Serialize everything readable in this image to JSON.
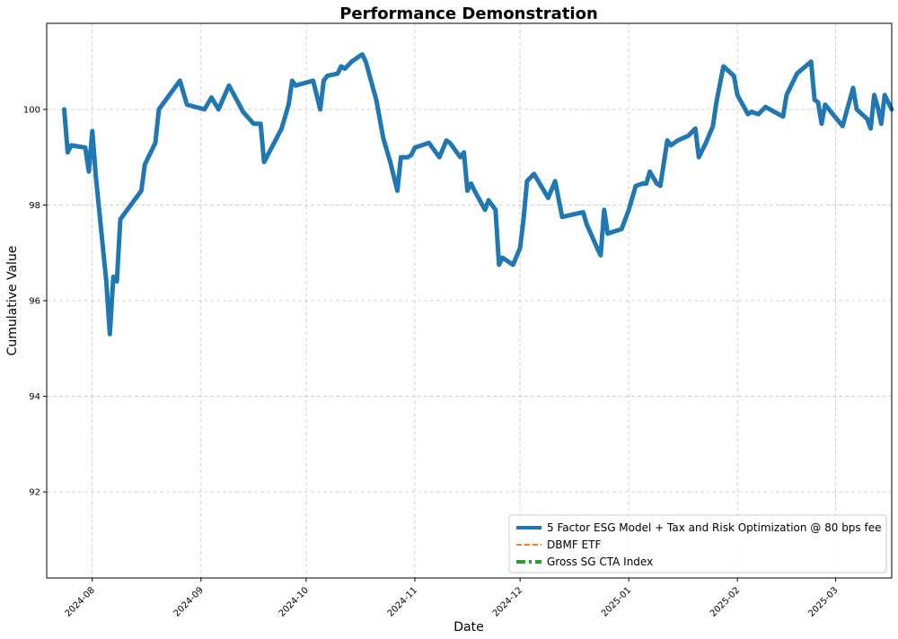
{
  "chart_data": {
    "type": "line",
    "title": "Performance Demonstration",
    "xlabel": "Date",
    "ylabel": "Cumulative Value",
    "xlim": [
      "2024-07-19",
      "2025-03-17"
    ],
    "ylim": [
      90.2,
      101.8
    ],
    "yticks": [
      92,
      94,
      96,
      98,
      100
    ],
    "xticks": [
      "2024-08-01",
      "2024-09-01",
      "2024-10-01",
      "2024-11-01",
      "2024-12-01",
      "2025-01-01",
      "2025-02-01",
      "2025-03-01"
    ],
    "xtick_labels": [
      "2024-08",
      "2024-09",
      "2024-10",
      "2024-11",
      "2024-12",
      "2025-01",
      "2025-02",
      "2025-03"
    ],
    "grid": true,
    "legend_position": "lower-right",
    "series": [
      {
        "name": "5 Factor ESG Model + Tax and Risk Optimization @ 80 bps fee",
        "color": "#1f77b4",
        "style": "solid",
        "points": [
          [
            "2024-07-24",
            100.0
          ],
          [
            "2024-07-25",
            99.1
          ],
          [
            "2024-07-26",
            99.25
          ],
          [
            "2024-07-30",
            99.2
          ],
          [
            "2024-07-31",
            98.7
          ],
          [
            "2024-08-01",
            99.55
          ],
          [
            "2024-08-02",
            98.6
          ],
          [
            "2024-08-05",
            96.4
          ],
          [
            "2024-08-06",
            95.3
          ],
          [
            "2024-08-07",
            96.5
          ],
          [
            "2024-08-08",
            96.4
          ],
          [
            "2024-08-09",
            97.7
          ],
          [
            "2024-08-12",
            98.0
          ],
          [
            "2024-08-15",
            98.3
          ],
          [
            "2024-08-16",
            98.85
          ],
          [
            "2024-08-19",
            99.3
          ],
          [
            "2024-08-20",
            100.0
          ],
          [
            "2024-08-26",
            100.6
          ],
          [
            "2024-08-28",
            100.1
          ],
          [
            "2024-09-02",
            100.0
          ],
          [
            "2024-09-04",
            100.25
          ],
          [
            "2024-09-06",
            100.0
          ],
          [
            "2024-09-09",
            100.5
          ],
          [
            "2024-09-13",
            99.95
          ],
          [
            "2024-09-16",
            99.7
          ],
          [
            "2024-09-18",
            99.7
          ],
          [
            "2024-09-19",
            98.9
          ],
          [
            "2024-09-24",
            99.6
          ],
          [
            "2024-09-26",
            100.1
          ],
          [
            "2024-09-27",
            100.6
          ],
          [
            "2024-09-28",
            100.5
          ],
          [
            "2024-10-03",
            100.6
          ],
          [
            "2024-10-05",
            100.0
          ],
          [
            "2024-10-06",
            100.6
          ],
          [
            "2024-10-07",
            100.7
          ],
          [
            "2024-10-10",
            100.75
          ],
          [
            "2024-10-11",
            100.9
          ],
          [
            "2024-10-12",
            100.85
          ],
          [
            "2024-10-14",
            101.0
          ],
          [
            "2024-10-17",
            101.15
          ],
          [
            "2024-10-18",
            101.0
          ],
          [
            "2024-10-21",
            100.2
          ],
          [
            "2024-10-23",
            99.4
          ],
          [
            "2024-10-25",
            98.9
          ],
          [
            "2024-10-27",
            98.3
          ],
          [
            "2024-10-28",
            99.0
          ],
          [
            "2024-10-30",
            99.0
          ],
          [
            "2024-10-31",
            99.05
          ],
          [
            "2024-11-01",
            99.2
          ],
          [
            "2024-11-05",
            99.3
          ],
          [
            "2024-11-07",
            99.1
          ],
          [
            "2024-11-08",
            99.0
          ],
          [
            "2024-11-10",
            99.35
          ],
          [
            "2024-11-11",
            99.3
          ],
          [
            "2024-11-14",
            99.0
          ],
          [
            "2024-11-15",
            99.1
          ],
          [
            "2024-11-16",
            98.3
          ],
          [
            "2024-11-17",
            98.45
          ],
          [
            "2024-11-18",
            98.3
          ],
          [
            "2024-11-21",
            97.9
          ],
          [
            "2024-11-22",
            98.1
          ],
          [
            "2024-11-24",
            97.9
          ],
          [
            "2024-11-25",
            96.75
          ],
          [
            "2024-11-26",
            96.9
          ],
          [
            "2024-11-28",
            96.8
          ],
          [
            "2024-11-29",
            96.75
          ],
          [
            "2024-12-01",
            97.1
          ],
          [
            "2024-12-02",
            97.7
          ],
          [
            "2024-12-03",
            98.5
          ],
          [
            "2024-12-05",
            98.65
          ],
          [
            "2024-12-09",
            98.15
          ],
          [
            "2024-12-11",
            98.5
          ],
          [
            "2024-12-13",
            97.75
          ],
          [
            "2024-12-16",
            97.8
          ],
          [
            "2024-12-19",
            97.85
          ],
          [
            "2024-12-20",
            97.6
          ],
          [
            "2024-12-23",
            97.1
          ],
          [
            "2024-12-24",
            96.95
          ],
          [
            "2024-12-25",
            97.9
          ],
          [
            "2024-12-26",
            97.4
          ],
          [
            "2024-12-30",
            97.5
          ],
          [
            "2025-01-01",
            97.9
          ],
          [
            "2025-01-03",
            98.4
          ],
          [
            "2025-01-05",
            98.45
          ],
          [
            "2025-01-06",
            98.45
          ],
          [
            "2025-01-07",
            98.7
          ],
          [
            "2025-01-09",
            98.45
          ],
          [
            "2025-01-10",
            98.4
          ],
          [
            "2025-01-12",
            99.35
          ],
          [
            "2025-01-13",
            99.25
          ],
          [
            "2025-01-15",
            99.35
          ],
          [
            "2025-01-18",
            99.45
          ],
          [
            "2025-01-20",
            99.6
          ],
          [
            "2025-01-21",
            99.0
          ],
          [
            "2025-01-23",
            99.3
          ],
          [
            "2025-01-25",
            99.65
          ],
          [
            "2025-01-26",
            100.15
          ],
          [
            "2025-01-28",
            100.9
          ],
          [
            "2025-01-31",
            100.7
          ],
          [
            "2025-02-01",
            100.3
          ],
          [
            "2025-02-04",
            99.9
          ],
          [
            "2025-02-05",
            99.95
          ],
          [
            "2025-02-07",
            99.9
          ],
          [
            "2025-02-09",
            100.05
          ],
          [
            "2025-02-14",
            99.85
          ],
          [
            "2025-02-15",
            100.3
          ],
          [
            "2025-02-18",
            100.75
          ],
          [
            "2025-02-22",
            101.0
          ],
          [
            "2025-02-23",
            100.2
          ],
          [
            "2025-02-24",
            100.15
          ],
          [
            "2025-02-25",
            99.7
          ],
          [
            "2025-02-26",
            100.1
          ],
          [
            "2025-03-03",
            99.65
          ],
          [
            "2025-03-06",
            100.45
          ],
          [
            "2025-03-07",
            100.0
          ],
          [
            "2025-03-10",
            99.8
          ],
          [
            "2025-03-11",
            99.6
          ],
          [
            "2025-03-12",
            100.3
          ],
          [
            "2025-03-13",
            100.05
          ],
          [
            "2025-03-14",
            99.7
          ],
          [
            "2025-03-15",
            100.3
          ],
          [
            "2025-03-17",
            100.0
          ]
        ]
      },
      {
        "name": "DBMF ETF",
        "color": "#ff7f0e",
        "style": "dashed",
        "points": []
      },
      {
        "name": "Gross SG CTA Index",
        "color": "#2ca02c",
        "style": "dashdot",
        "points": []
      }
    ]
  }
}
